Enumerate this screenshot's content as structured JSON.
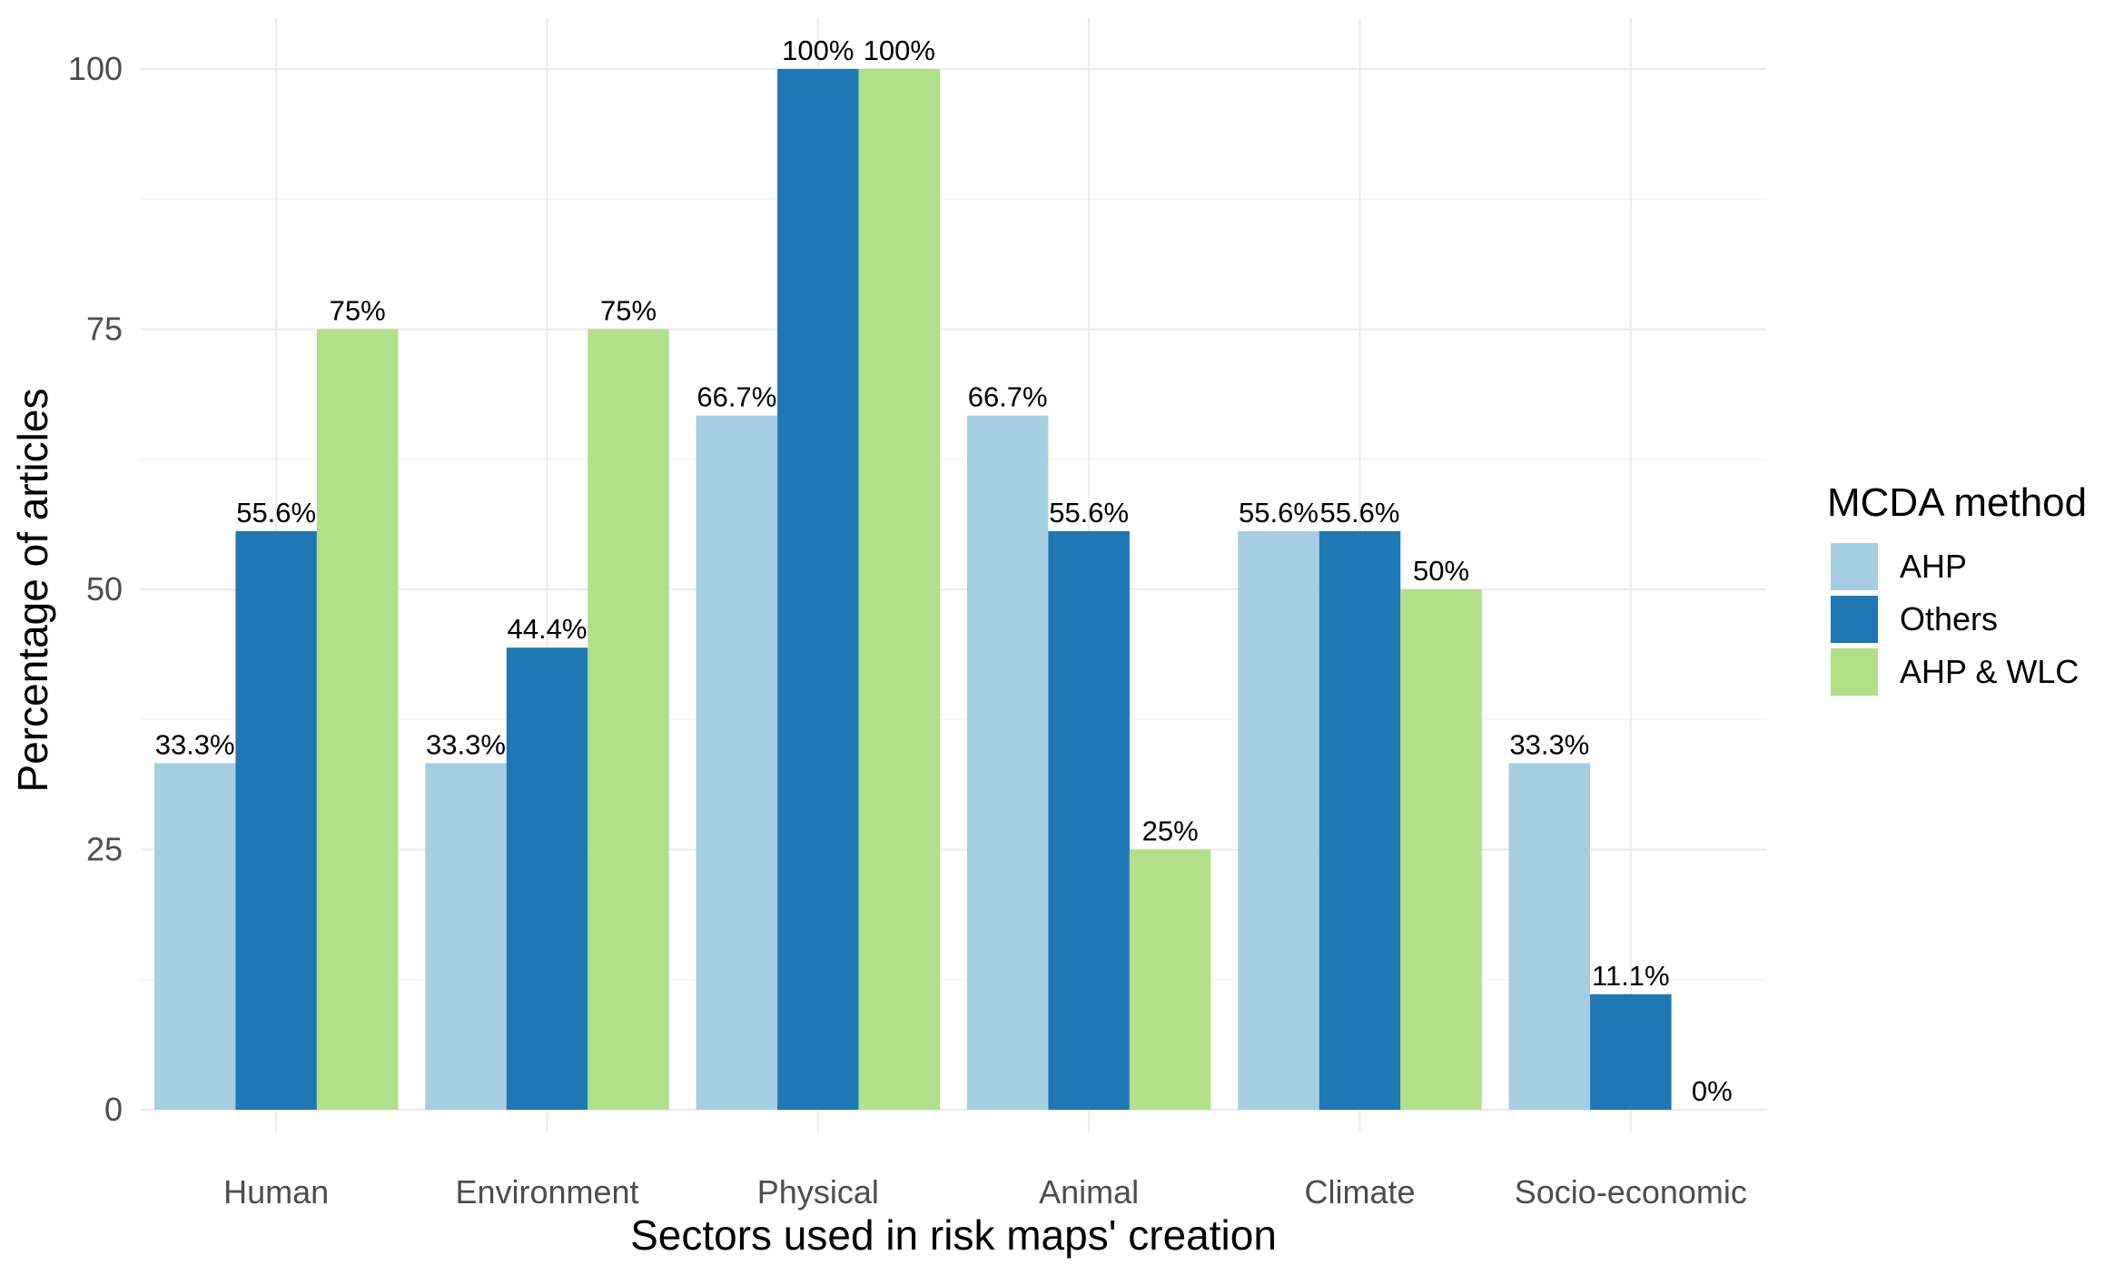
{
  "chart_data": {
    "type": "bar",
    "title": "",
    "xlabel": "Sectors used in risk maps' creation",
    "ylabel": "Percentage of articles",
    "ylim": [
      0,
      105
    ],
    "yticks": [
      0,
      25,
      50,
      75,
      100
    ],
    "grid": true,
    "categories": [
      "Human",
      "Environment",
      "Physical",
      "Animal",
      "Climate",
      "Socio-economic"
    ],
    "series": [
      {
        "name": "AHP",
        "color": "#a6cee3",
        "values": [
          33.3,
          33.3,
          66.7,
          66.7,
          55.6,
          33.3
        ],
        "labels": [
          "33.3%",
          "33.3%",
          "66.7%",
          "66.7%",
          "55.6%",
          "33.3%"
        ]
      },
      {
        "name": "Others",
        "color": "#1f78b4",
        "values": [
          55.6,
          44.4,
          100,
          55.6,
          55.6,
          11.1
        ],
        "labels": [
          "55.6%",
          "44.4%",
          "100%",
          "55.6%",
          "55.6%",
          "11.1%"
        ]
      },
      {
        "name": "AHP & WLC",
        "color": "#b2df8a",
        "values": [
          75,
          75,
          100,
          25,
          50,
          0
        ],
        "labels": [
          "75%",
          "75%",
          "100%",
          "25%",
          "50%",
          "0%"
        ]
      }
    ],
    "legend": {
      "title": "MCDA method",
      "position": "right"
    }
  }
}
